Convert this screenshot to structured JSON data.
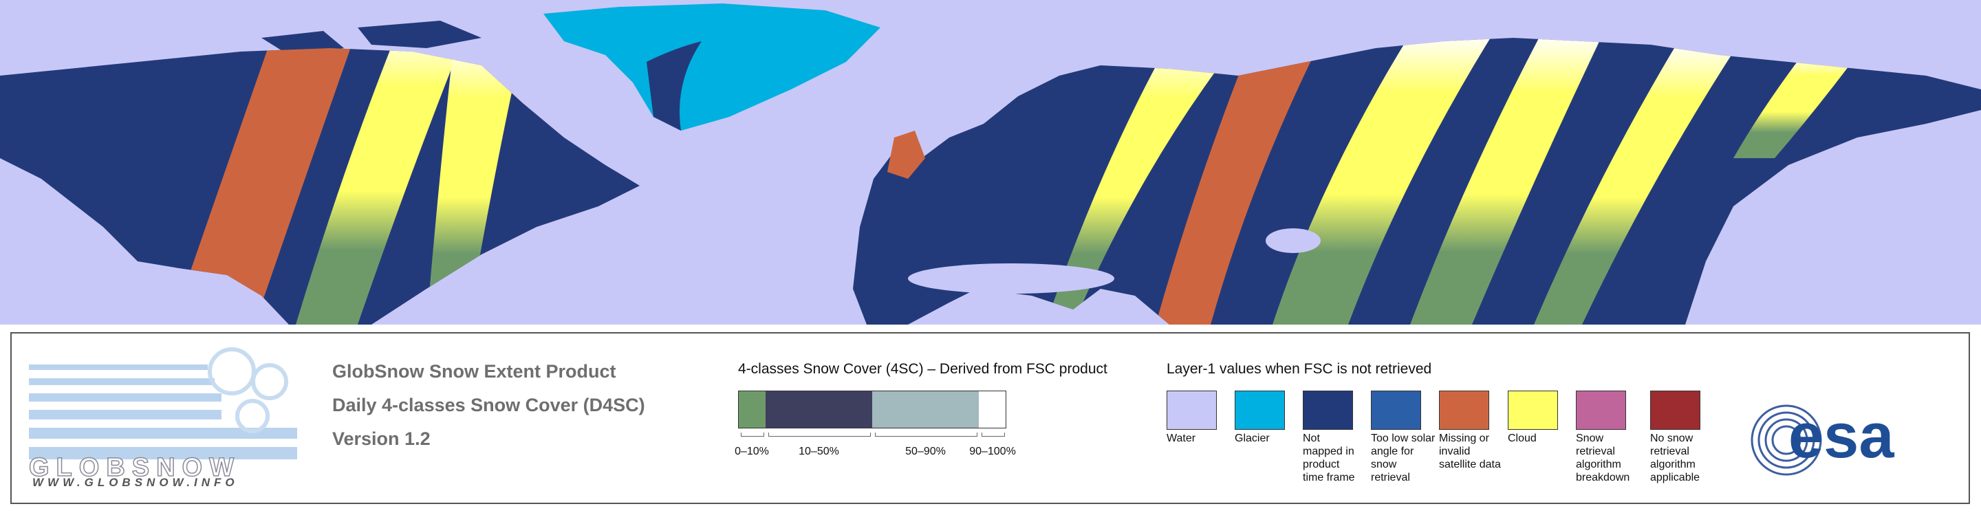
{
  "logo": {
    "name": "GLOBSNOW",
    "url": "WWW.GLOBSNOW.INFO"
  },
  "product": {
    "lines": [
      "GlobSnow Snow Extent Product",
      "Daily 4-classes Snow Cover (D4SC)",
      "Version 1.2"
    ]
  },
  "snow_cover_legend": {
    "title": "4-classes Snow Cover (4SC) – Derived from FSC product",
    "classes": [
      {
        "label": "0–10%",
        "color": "#6e9a6a"
      },
      {
        "label": "10–50%",
        "color": "#3e3e5e"
      },
      {
        "label": "50–90%",
        "color": "#a2b9bd"
      },
      {
        "label": "90–100%",
        "color": "#ffffff"
      }
    ]
  },
  "layer1_legend": {
    "title": "Layer-1 values when FSC is not retrieved",
    "items": [
      {
        "label": "Water",
        "color": "#c8c8f8"
      },
      {
        "label": "Glacier",
        "color": "#00b0e0"
      },
      {
        "label": "Not mapped in product time frame",
        "color": "#233a7a"
      },
      {
        "label": "Too low solar angle for snow retrieval",
        "color": "#2b5fa8"
      },
      {
        "label": "Missing or invalid satellite data",
        "color": "#cd6640"
      },
      {
        "label": "Cloud",
        "color": "#ffff66"
      },
      {
        "label": "Snow retrieval algorithm breakdown",
        "color": "#c0649c"
      },
      {
        "label": "No snow retrieval algorithm applicable",
        "color": "#9c2c30"
      }
    ]
  },
  "agency": "esa"
}
